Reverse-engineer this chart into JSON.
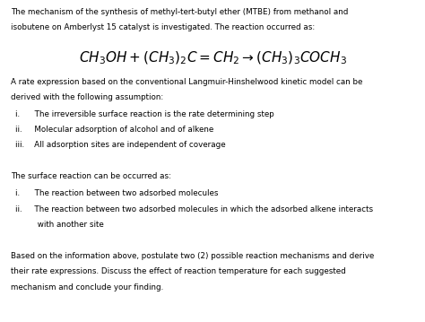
{
  "bg_color": "#ffffff",
  "text_color": "#000000",
  "font_size_body": 6.3,
  "font_size_equation": 11,
  "paragraph1_line1": "The mechanism of the synthesis of methyl-tert-butyl ether (MTBE) from methanol and",
  "paragraph1_line2": "isobutene on Amberlyst 15 catalyst is investigated. The reaction occurred as:",
  "equation": "$CH_3OH + (CH_3)_2C = CH_2 \\rightarrow (CH_3)_3COCH_3$",
  "paragraph2_line1": "A rate expression based on the conventional Langmuir-Hinshelwood kinetic model can be",
  "paragraph2_line2": "derived with the following assumption:",
  "list1_i": "i.      The irreversible surface reaction is the rate determining step",
  "list1_ii": "ii.     Molecular adsorption of alcohol and of alkene",
  "list1_iii": "iii.    All adsorption sites are independent of coverage",
  "paragraph3": "The surface reaction can be occurred as:",
  "list2_i": "i.      The reaction between two adsorbed molecules",
  "list2_ii_1": "ii.     The reaction between two adsorbed molecules in which the adsorbed alkene interacts",
  "list2_ii_2": "         with another site",
  "paragraph4_line1": "Based on the information above, postulate two (2) possible reaction mechanisms and derive",
  "paragraph4_line2": "their rate expressions. Discuss the effect of reaction temperature for each suggested",
  "paragraph4_line3": "mechanism and conclude your finding."
}
